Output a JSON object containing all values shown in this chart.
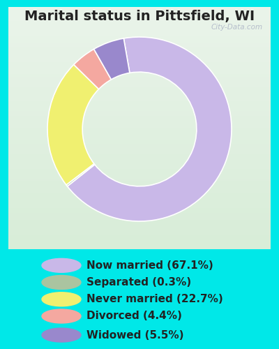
{
  "title": "Marital status in Pittsfield, WI",
  "slices": [
    67.1,
    0.3,
    22.7,
    4.4,
    5.5
  ],
  "labels": [
    "Now married (67.1%)",
    "Separated (0.3%)",
    "Never married (22.7%)",
    "Divorced (4.4%)",
    "Widowed (5.5%)"
  ],
  "colors": [
    "#c9b8e8",
    "#aac4a0",
    "#f0f070",
    "#f4a8a0",
    "#9988cc"
  ],
  "bg_outer": "#00e8e8",
  "chart_box_bg_top": "#e8f0e0",
  "chart_box_bg_bottom": "#c8e8d8",
  "title_fontsize": 14,
  "legend_fontsize": 11,
  "watermark": "City-Data.com",
  "donut_width": 0.38,
  "startangle": 100
}
